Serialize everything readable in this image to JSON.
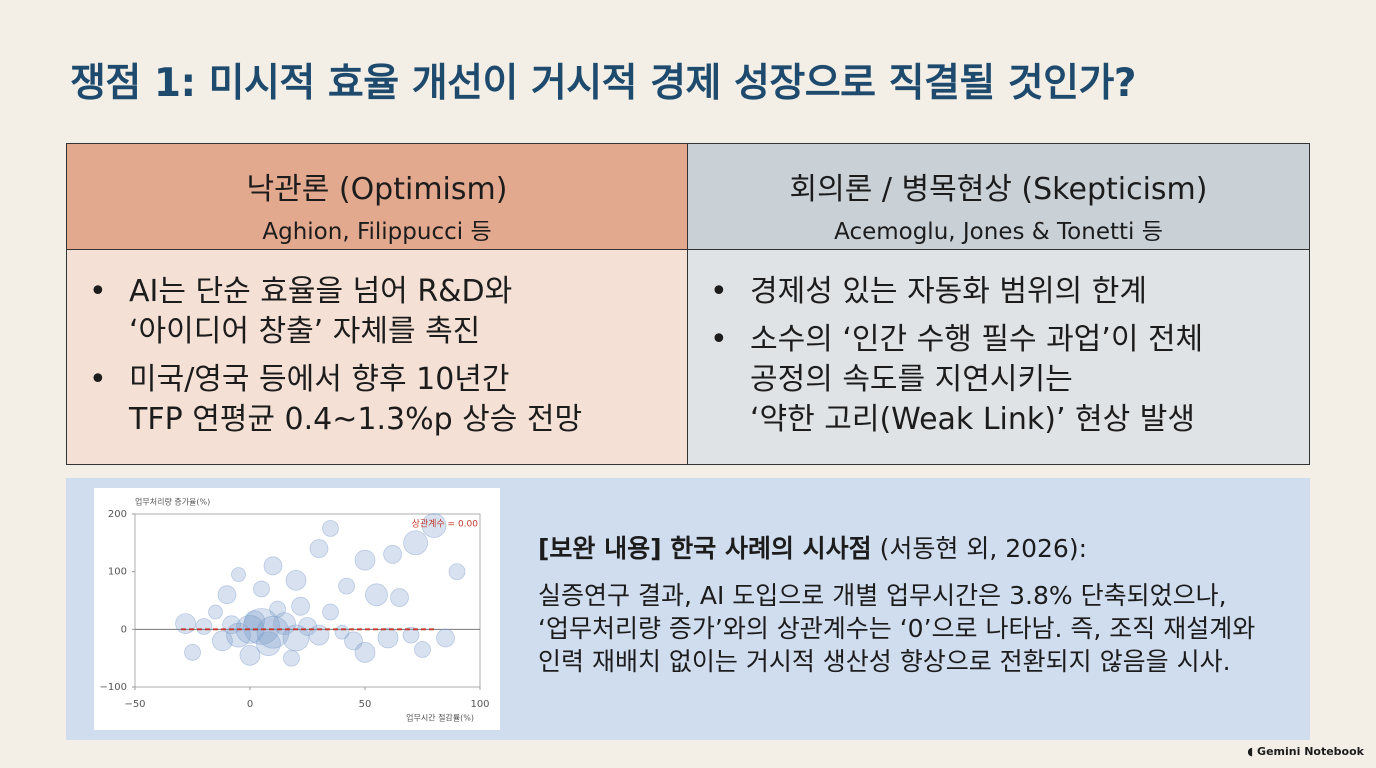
{
  "title": "쟁점 1: 미시적 효율 개선이 거시적 경제 성장으로 직결될 것인가?",
  "table": {
    "columns": [
      {
        "heading": "낙관론 (Optimism)",
        "authors": "Aghion, Filippucci 등",
        "bullets": [
          [
            "AI는 단순 효율을 넘어 R&D와",
            "‘아이디어 창출’ 자체를 촉진"
          ],
          [
            "미국/영국 등에서 향후 10년간",
            "TFP 연평균 0.4~1.3%p 상승 전망"
          ]
        ]
      },
      {
        "heading": "회의론 / 병목현상 (Skepticism)",
        "authors": "Acemoglu, Jones & Tonetti 등",
        "bullets": [
          [
            "경제성 있는 자동화 범위의 한계"
          ],
          [
            "소수의 ‘인간 수행 필수 과업’이 전체",
            "공정의 속도를 지연시키는",
            "‘약한 고리(Weak Link)’ 현상 발생"
          ]
        ]
      }
    ]
  },
  "chart_data": {
    "type": "scatter",
    "y_label": "업무처리량 증가율(%)",
    "x_label": "업무시간 절감률(%)",
    "annotation": "상관계수 = 0.00",
    "xlim": [
      -50,
      100
    ],
    "xticks": [
      {
        "value": -50,
        "label": "−50"
      },
      0,
      50,
      100
    ],
    "ylim": [
      -100,
      200
    ],
    "yticks": [
      {
        "value": -100,
        "label": "−100"
      },
      0,
      100,
      200
    ],
    "x": [
      0,
      5,
      -5,
      10,
      2,
      -8,
      15,
      20,
      -12,
      8,
      25,
      30,
      -20,
      -28,
      -15,
      12,
      22,
      35,
      40,
      45,
      60,
      70,
      85,
      55,
      65,
      42,
      20,
      10,
      -5,
      30,
      50,
      72,
      80,
      35,
      62,
      90,
      -25,
      0,
      18,
      50,
      75,
      -10,
      5
    ],
    "series": [
      {
        "color": "#7b9bcb",
        "values": [
          0,
          5,
          -10,
          -5,
          15,
          8,
          10,
          -15,
          -20,
          -25,
          5,
          -10,
          5,
          10,
          30,
          35,
          40,
          30,
          -5,
          -20,
          -15,
          -10,
          -15,
          60,
          55,
          75,
          85,
          110,
          95,
          140,
          120,
          150,
          180,
          175,
          130,
          100,
          -40,
          -45,
          -50,
          -40,
          -35,
          60,
          70
        ],
        "sizes": [
          14,
          18,
          12,
          16,
          10,
          9,
          11,
          13,
          10,
          12,
          9,
          10,
          8,
          10,
          7,
          8,
          9,
          8,
          7,
          9,
          10,
          8,
          9,
          11,
          9,
          8,
          10,
          9,
          7,
          9,
          10,
          12,
          12,
          8,
          9,
          8,
          8,
          10,
          8,
          10,
          8,
          9,
          8
        ]
      }
    ],
    "trend_line": {
      "x": [
        -30,
        80
      ],
      "values": [
        0,
        0
      ],
      "color": "#c0392b"
    }
  },
  "note": {
    "heading": "[보완 내용] 한국 사례의 시사점",
    "source": "(서동현 외, 2026):",
    "lines": [
      "실증연구 결과, AI 도입으로 개별 업무시간은 3.8% 단축되었으나,",
      "‘업무처리량 증가’와의 상관계수는 ‘0’으로 나타남. 즉, 조직 재설계와",
      "인력 재배치 없이는 거시적 생산성 향상으로 전환되지 않음을 시사."
    ]
  },
  "footer": "Gemini Notebook"
}
